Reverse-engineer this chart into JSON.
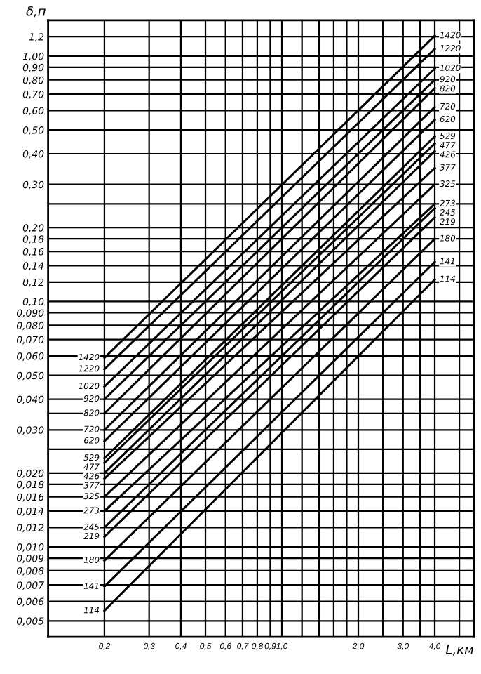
{
  "chart_data": {
    "type": "line",
    "xlabel": "L,км",
    "ylabel": "δ,п",
    "log": "xy",
    "grid": true,
    "legend": false,
    "marker": "none",
    "line_style": "solid",
    "x": [
      0.2,
      4.0
    ],
    "xlim": [
      0.12,
      5.7
    ],
    "ylim": [
      0.0043,
      1.4
    ],
    "xticks": [
      {
        "value": 0.2,
        "label": "0,2"
      },
      {
        "value": 0.3,
        "label": "0,3"
      },
      {
        "value": 0.4,
        "label": "0,4"
      },
      {
        "value": 0.5,
        "label": "0,5"
      },
      {
        "value": 0.6,
        "label": "0,6"
      },
      {
        "value": 0.7,
        "label": "0,7"
      },
      {
        "value": 0.8,
        "label": "0,8"
      },
      {
        "value": 0.9,
        "label": "0,9"
      },
      {
        "value": 1.0,
        "label": "1,0"
      },
      {
        "value": 1.2,
        "label": null
      },
      {
        "value": 1.4,
        "label": null
      },
      {
        "value": 1.6,
        "label": null
      },
      {
        "value": 1.8,
        "label": null
      },
      {
        "value": 2.0,
        "label": "2,0"
      },
      {
        "value": 2.5,
        "label": null
      },
      {
        "value": 3.0,
        "label": "3,0"
      },
      {
        "value": 3.5,
        "label": null
      },
      {
        "value": 4.0,
        "label": "4,0"
      },
      {
        "value": 5.0,
        "label": null
      }
    ],
    "yticks": [
      {
        "value": 0.005,
        "label": "0,005"
      },
      {
        "value": 0.006,
        "label": "0,006"
      },
      {
        "value": 0.007,
        "label": "0,007"
      },
      {
        "value": 0.008,
        "label": "0,008"
      },
      {
        "value": 0.009,
        "label": "0,009"
      },
      {
        "value": 0.01,
        "label": "0,010"
      },
      {
        "value": 0.012,
        "label": "0,012"
      },
      {
        "value": 0.014,
        "label": "0,014"
      },
      {
        "value": 0.016,
        "label": "0,016"
      },
      {
        "value": 0.018,
        "label": "0,018"
      },
      {
        "value": 0.02,
        "label": "0,020"
      },
      {
        "value": 0.025,
        "label": null
      },
      {
        "value": 0.03,
        "label": "0,030"
      },
      {
        "value": 0.035,
        "label": null
      },
      {
        "value": 0.04,
        "label": "0,040"
      },
      {
        "value": 0.05,
        "label": "0,050"
      },
      {
        "value": 0.06,
        "label": "0,060"
      },
      {
        "value": 0.07,
        "label": "0,070"
      },
      {
        "value": 0.08,
        "label": "0,080"
      },
      {
        "value": 0.09,
        "label": "0,090"
      },
      {
        "value": 0.1,
        "label": "0,10"
      },
      {
        "value": 0.12,
        "label": "0,12"
      },
      {
        "value": 0.14,
        "label": "0,14"
      },
      {
        "value": 0.16,
        "label": "0,16"
      },
      {
        "value": 0.18,
        "label": "0,18"
      },
      {
        "value": 0.2,
        "label": "0,20"
      },
      {
        "value": 0.25,
        "label": null
      },
      {
        "value": 0.3,
        "label": "0,30"
      },
      {
        "value": 0.4,
        "label": "0,40"
      },
      {
        "value": 0.5,
        "label": "0,50"
      },
      {
        "value": 0.6,
        "label": "0,60"
      },
      {
        "value": 0.7,
        "label": "0,70"
      },
      {
        "value": 0.8,
        "label": "0,80"
      },
      {
        "value": 0.9,
        "label": "0,90"
      },
      {
        "value": 1.0,
        "label": "1,00"
      },
      {
        "value": 1.2,
        "label": "1,2"
      }
    ],
    "series": [
      {
        "name": "1420",
        "color": "#000000",
        "values": [
          0.059,
          1.21
        ]
      },
      {
        "name": "1220",
        "color": "#000000",
        "values": [
          0.053,
          1.07
        ]
      },
      {
        "name": "1020",
        "color": "#000000",
        "values": [
          0.045,
          0.89
        ]
      },
      {
        "name": "920",
        "color": "#000000",
        "values": [
          0.04,
          0.8
        ]
      },
      {
        "name": "820",
        "color": "#000000",
        "values": [
          0.035,
          0.74
        ]
      },
      {
        "name": "720",
        "color": "#000000",
        "values": [
          0.03,
          0.62
        ]
      },
      {
        "name": "620",
        "color": "#000000",
        "values": [
          0.027,
          0.55
        ]
      },
      {
        "name": "529",
        "color": "#000000",
        "values": [
          0.023,
          0.47
        ]
      },
      {
        "name": "477",
        "color": "#000000",
        "values": [
          0.022,
          0.44
        ]
      },
      {
        "name": "426",
        "color": "#000000",
        "values": [
          0.02,
          0.41
        ]
      },
      {
        "name": "377",
        "color": "#000000",
        "values": [
          0.019,
          0.35
        ]
      },
      {
        "name": "325",
        "color": "#000000",
        "values": [
          0.016,
          0.3
        ]
      },
      {
        "name": "273",
        "color": "#000000",
        "values": [
          0.014,
          0.25
        ]
      },
      {
        "name": "245",
        "color": "#000000",
        "values": [
          0.012,
          0.24
        ]
      },
      {
        "name": "219",
        "color": "#000000",
        "values": [
          0.011,
          0.22
        ]
      },
      {
        "name": "180",
        "color": "#000000",
        "values": [
          0.0088,
          0.18
        ]
      },
      {
        "name": "141",
        "color": "#000000",
        "values": [
          0.0069,
          0.145
        ]
      },
      {
        "name": "114",
        "color": "#000000",
        "values": [
          0.0055,
          0.123
        ]
      }
    ]
  }
}
